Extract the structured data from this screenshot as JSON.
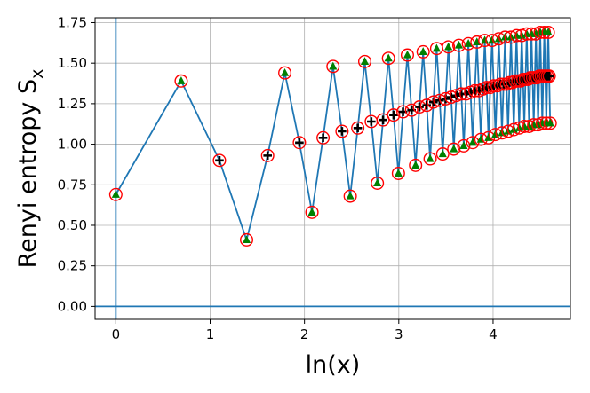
{
  "chart_data": {
    "type": "line",
    "xlabel": "ln(x)",
    "ylabel_main": "Renyi entropy S",
    "ylabel_sub": "x",
    "xlim": [
      -0.22,
      4.82
    ],
    "ylim": [
      -0.08,
      1.78
    ],
    "x_ticks": [
      0,
      1,
      2,
      3,
      4
    ],
    "x_tick_labels": [
      "0",
      "1",
      "2",
      "3",
      "4"
    ],
    "y_ticks": [
      0.0,
      0.25,
      0.5,
      0.75,
      1.0,
      1.25,
      1.5,
      1.75
    ],
    "y_tick_labels": [
      "0.00",
      "0.25",
      "0.50",
      "0.75",
      "1.00",
      "1.25",
      "1.50",
      "1.75"
    ],
    "grid": true,
    "reference_lines": {
      "x": 0,
      "y": 0
    },
    "series": [
      {
        "marker": "mixed",
        "x_log_of": [
          1,
          2,
          3,
          4,
          5,
          6,
          7,
          8,
          9,
          10,
          11,
          12,
          13,
          14,
          15,
          16,
          17,
          18,
          19,
          20,
          21,
          22,
          23,
          24,
          25,
          26,
          27,
          28,
          29,
          30,
          31,
          32,
          33,
          34,
          35,
          36,
          37,
          38,
          39,
          40,
          41,
          42,
          43,
          44,
          45,
          46,
          47,
          48,
          49,
          50,
          51,
          52,
          53,
          54,
          55,
          56,
          57,
          58,
          59,
          60,
          61,
          62,
          63,
          64,
          65,
          66,
          67,
          68,
          69,
          70,
          71,
          72,
          73,
          74,
          75,
          76,
          77,
          78,
          79,
          80,
          81,
          82,
          83,
          84,
          85,
          86,
          87,
          88,
          89,
          90,
          91,
          92,
          93,
          94,
          95,
          96,
          97,
          98,
          99,
          100
        ],
        "y": [
          0.69,
          1.39,
          0.9,
          0.41,
          0.93,
          1.44,
          1.01,
          0.58,
          1.04,
          1.48,
          1.08,
          0.68,
          1.1,
          1.51,
          1.14,
          0.76,
          1.15,
          1.53,
          1.18,
          0.82,
          1.2,
          1.55,
          1.21,
          0.87,
          1.23,
          1.57,
          1.24,
          0.91,
          1.26,
          1.59,
          1.27,
          0.94,
          1.28,
          1.6,
          1.29,
          0.97,
          1.3,
          1.61,
          1.31,
          0.99,
          1.31,
          1.62,
          1.32,
          1.01,
          1.33,
          1.63,
          1.33,
          1.03,
          1.34,
          1.64,
          1.35,
          1.04,
          1.35,
          1.64,
          1.36,
          1.06,
          1.36,
          1.65,
          1.37,
          1.07,
          1.37,
          1.66,
          1.37,
          1.08,
          1.38,
          1.66,
          1.38,
          1.09,
          1.39,
          1.67,
          1.39,
          1.1,
          1.39,
          1.67,
          1.4,
          1.11,
          1.4,
          1.68,
          1.4,
          1.11,
          1.41,
          1.68,
          1.41,
          1.12,
          1.41,
          1.68,
          1.41,
          1.12,
          1.42,
          1.69,
          1.42,
          1.13,
          1.42,
          1.69,
          1.42,
          1.13,
          1.42,
          1.69,
          1.42,
          1.13
        ],
        "marker_kind": [
          "triangle",
          "triangle",
          "plus",
          "triangle",
          "plus",
          "triangle",
          "plus",
          "triangle",
          "plus",
          "triangle",
          "plus",
          "triangle",
          "plus",
          "triangle",
          "plus",
          "triangle",
          "plus",
          "triangle",
          "plus",
          "triangle",
          "plus",
          "triangle",
          "plus",
          "triangle",
          "plus",
          "triangle",
          "plus",
          "triangle",
          "plus",
          "triangle",
          "plus",
          "triangle",
          "plus",
          "triangle",
          "plus",
          "triangle",
          "plus",
          "triangle",
          "plus",
          "triangle",
          "plus",
          "triangle",
          "plus",
          "triangle",
          "plus",
          "triangle",
          "plus",
          "triangle",
          "plus",
          "triangle",
          "plus",
          "triangle",
          "plus",
          "triangle",
          "plus",
          "triangle",
          "plus",
          "triangle",
          "plus",
          "triangle",
          "plus",
          "triangle",
          "plus",
          "triangle",
          "plus",
          "triangle",
          "plus",
          "triangle",
          "plus",
          "triangle",
          "plus",
          "triangle",
          "plus",
          "triangle",
          "plus",
          "triangle",
          "plus",
          "triangle",
          "plus",
          "triangle",
          "plus",
          "triangle",
          "plus",
          "triangle",
          "plus",
          "triangle",
          "plus",
          "triangle",
          "plus",
          "triangle",
          "plus",
          "triangle",
          "plus",
          "triangle",
          "plus",
          "triangle",
          "plus",
          "triangle",
          "plus",
          "triangle"
        ]
      }
    ],
    "colors": {
      "line": "#1f77b4",
      "reference": "#1f77b4",
      "circle": "#ff0000",
      "triangle": "#008000",
      "plus": "#000000",
      "grid": "#b0b0b0"
    }
  }
}
